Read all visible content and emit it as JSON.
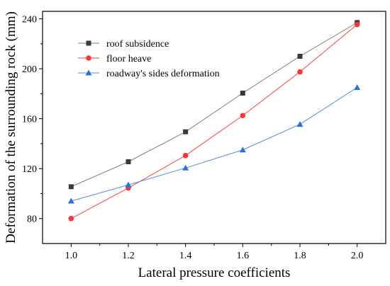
{
  "chart_data": {
    "type": "line",
    "title": "",
    "xlabel": "Lateral pressure coefficients",
    "ylabel": "Deformation of the surrounding rock (mm)",
    "x": [
      1.0,
      1.2,
      1.4,
      1.6,
      1.8,
      2.0
    ],
    "x_tick_labels": [
      "1.0",
      "1.2",
      "1.4",
      "1.6",
      "1.8",
      "2.0"
    ],
    "xlim": [
      0.9,
      2.1
    ],
    "ylim": [
      60,
      246
    ],
    "y_ticks": [
      80,
      120,
      160,
      200,
      240
    ],
    "y_tick_labels": [
      "80",
      "120",
      "160",
      "200",
      "240"
    ],
    "grid": false,
    "legend_position": "top-left",
    "series": [
      {
        "name": "roof subsidence",
        "values": [
          105.5,
          125.5,
          149.5,
          180.5,
          210.0,
          237.0
        ],
        "color": "#7f7f7f",
        "marker": "square",
        "marker_color": "#3a3a3a"
      },
      {
        "name": "floor heave",
        "values": [
          80.0,
          104.5,
          130.5,
          162.5,
          197.5,
          235.5
        ],
        "color": "#ff4040",
        "marker": "circle",
        "marker_color": "#ff3333"
      },
      {
        "name": "roadway's sides deformation",
        "values": [
          94.0,
          107.0,
          120.5,
          135.0,
          155.5,
          185.0
        ],
        "color": "#4a90e2",
        "marker": "triangle",
        "marker_color": "#2a70d8"
      }
    ]
  }
}
